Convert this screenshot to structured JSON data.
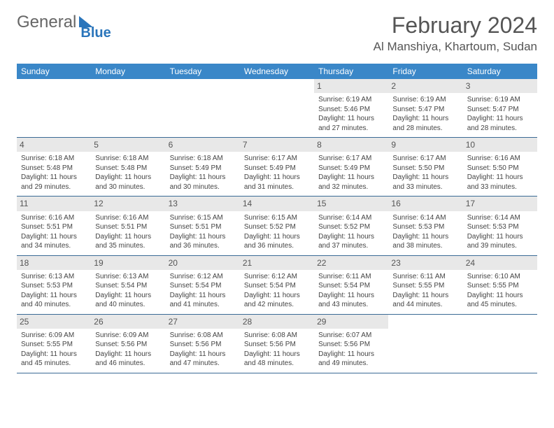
{
  "brand": {
    "part1": "General",
    "part2": "Blue"
  },
  "title": "February 2024",
  "location": "Al Manshiya, Khartoum, Sudan",
  "colors": {
    "header_bg": "#3a87c8",
    "header_text": "#ffffff",
    "daynum_bg": "#e8e8e8",
    "border": "#3a6a95",
    "brand_blue": "#2a75bb",
    "text": "#444444"
  },
  "dayHeaders": [
    "Sunday",
    "Monday",
    "Tuesday",
    "Wednesday",
    "Thursday",
    "Friday",
    "Saturday"
  ],
  "weeks": [
    [
      null,
      null,
      null,
      null,
      {
        "n": "1",
        "sunrise": "6:19 AM",
        "sunset": "5:46 PM",
        "daylight": "11 hours and 27 minutes."
      },
      {
        "n": "2",
        "sunrise": "6:19 AM",
        "sunset": "5:47 PM",
        "daylight": "11 hours and 28 minutes."
      },
      {
        "n": "3",
        "sunrise": "6:19 AM",
        "sunset": "5:47 PM",
        "daylight": "11 hours and 28 minutes."
      }
    ],
    [
      {
        "n": "4",
        "sunrise": "6:18 AM",
        "sunset": "5:48 PM",
        "daylight": "11 hours and 29 minutes."
      },
      {
        "n": "5",
        "sunrise": "6:18 AM",
        "sunset": "5:48 PM",
        "daylight": "11 hours and 30 minutes."
      },
      {
        "n": "6",
        "sunrise": "6:18 AM",
        "sunset": "5:49 PM",
        "daylight": "11 hours and 30 minutes."
      },
      {
        "n": "7",
        "sunrise": "6:17 AM",
        "sunset": "5:49 PM",
        "daylight": "11 hours and 31 minutes."
      },
      {
        "n": "8",
        "sunrise": "6:17 AM",
        "sunset": "5:49 PM",
        "daylight": "11 hours and 32 minutes."
      },
      {
        "n": "9",
        "sunrise": "6:17 AM",
        "sunset": "5:50 PM",
        "daylight": "11 hours and 33 minutes."
      },
      {
        "n": "10",
        "sunrise": "6:16 AM",
        "sunset": "5:50 PM",
        "daylight": "11 hours and 33 minutes."
      }
    ],
    [
      {
        "n": "11",
        "sunrise": "6:16 AM",
        "sunset": "5:51 PM",
        "daylight": "11 hours and 34 minutes."
      },
      {
        "n": "12",
        "sunrise": "6:16 AM",
        "sunset": "5:51 PM",
        "daylight": "11 hours and 35 minutes."
      },
      {
        "n": "13",
        "sunrise": "6:15 AM",
        "sunset": "5:51 PM",
        "daylight": "11 hours and 36 minutes."
      },
      {
        "n": "14",
        "sunrise": "6:15 AM",
        "sunset": "5:52 PM",
        "daylight": "11 hours and 36 minutes."
      },
      {
        "n": "15",
        "sunrise": "6:14 AM",
        "sunset": "5:52 PM",
        "daylight": "11 hours and 37 minutes."
      },
      {
        "n": "16",
        "sunrise": "6:14 AM",
        "sunset": "5:53 PM",
        "daylight": "11 hours and 38 minutes."
      },
      {
        "n": "17",
        "sunrise": "6:14 AM",
        "sunset": "5:53 PM",
        "daylight": "11 hours and 39 minutes."
      }
    ],
    [
      {
        "n": "18",
        "sunrise": "6:13 AM",
        "sunset": "5:53 PM",
        "daylight": "11 hours and 40 minutes."
      },
      {
        "n": "19",
        "sunrise": "6:13 AM",
        "sunset": "5:54 PM",
        "daylight": "11 hours and 40 minutes."
      },
      {
        "n": "20",
        "sunrise": "6:12 AM",
        "sunset": "5:54 PM",
        "daylight": "11 hours and 41 minutes."
      },
      {
        "n": "21",
        "sunrise": "6:12 AM",
        "sunset": "5:54 PM",
        "daylight": "11 hours and 42 minutes."
      },
      {
        "n": "22",
        "sunrise": "6:11 AM",
        "sunset": "5:54 PM",
        "daylight": "11 hours and 43 minutes."
      },
      {
        "n": "23",
        "sunrise": "6:11 AM",
        "sunset": "5:55 PM",
        "daylight": "11 hours and 44 minutes."
      },
      {
        "n": "24",
        "sunrise": "6:10 AM",
        "sunset": "5:55 PM",
        "daylight": "11 hours and 45 minutes."
      }
    ],
    [
      {
        "n": "25",
        "sunrise": "6:09 AM",
        "sunset": "5:55 PM",
        "daylight": "11 hours and 45 minutes."
      },
      {
        "n": "26",
        "sunrise": "6:09 AM",
        "sunset": "5:56 PM",
        "daylight": "11 hours and 46 minutes."
      },
      {
        "n": "27",
        "sunrise": "6:08 AM",
        "sunset": "5:56 PM",
        "daylight": "11 hours and 47 minutes."
      },
      {
        "n": "28",
        "sunrise": "6:08 AM",
        "sunset": "5:56 PM",
        "daylight": "11 hours and 48 minutes."
      },
      {
        "n": "29",
        "sunrise": "6:07 AM",
        "sunset": "5:56 PM",
        "daylight": "11 hours and 49 minutes."
      },
      null,
      null
    ]
  ],
  "labels": {
    "sunrise": "Sunrise: ",
    "sunset": "Sunset: ",
    "daylight": "Daylight: "
  }
}
